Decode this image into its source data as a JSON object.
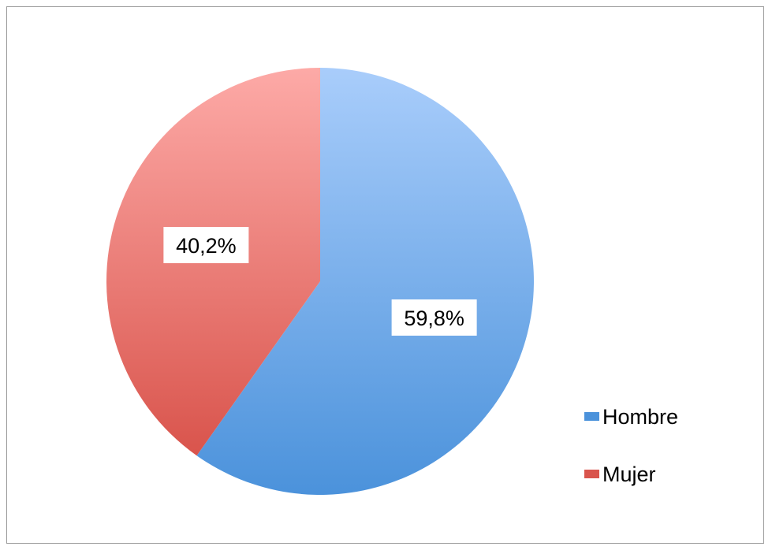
{
  "chart_data": {
    "type": "pie",
    "categories": [
      "Hombre",
      "Mujer"
    ],
    "values": [
      59.8,
      40.2
    ],
    "labels": [
      "59,8%",
      "40,2%"
    ],
    "colors": {
      "Hombre": {
        "light": "#a9cdfb",
        "dark": "#4b92db"
      },
      "Mujer": {
        "light": "#fdaaa7",
        "dark": "#d9544c"
      }
    },
    "start_angle": "12 o'clock",
    "direction": "clockwise",
    "legend": {
      "position": "right",
      "entries": [
        "Hombre",
        "Mujer"
      ]
    },
    "title": ""
  }
}
